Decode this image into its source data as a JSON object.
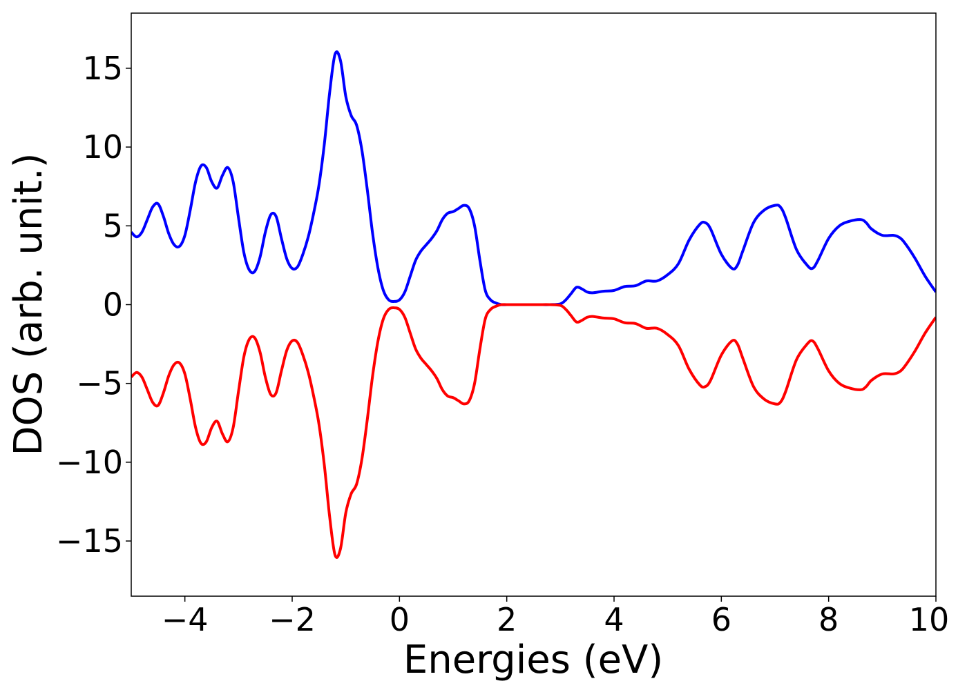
{
  "chart_data": {
    "type": "line",
    "xlabel": "Energies (eV)",
    "ylabel": "DOS (arb. unit.)",
    "xlim": [
      -5,
      10
    ],
    "ylim": [
      -18.5,
      18.5
    ],
    "grid": false,
    "legend": "none",
    "xticks": [
      -4,
      -2,
      0,
      2,
      4,
      6,
      8,
      10
    ],
    "xtick_labels": [
      "−4",
      "−2",
      "0",
      "2",
      "4",
      "6",
      "8",
      "10"
    ],
    "yticks": [
      -15,
      -10,
      -5,
      0,
      5,
      10,
      15
    ],
    "ytick_labels": [
      "−15",
      "−10",
      "−5",
      "0",
      "5",
      "10",
      "15"
    ],
    "series": [
      {
        "color": "#0000ff",
        "x": [
          -5.0,
          -4.9,
          -4.8,
          -4.7,
          -4.6,
          -4.5,
          -4.4,
          -4.3,
          -4.2,
          -4.1,
          -4.0,
          -3.9,
          -3.8,
          -3.7,
          -3.6,
          -3.5,
          -3.4,
          -3.3,
          -3.2,
          -3.1,
          -3.0,
          -2.9,
          -2.8,
          -2.7,
          -2.6,
          -2.5,
          -2.4,
          -2.3,
          -2.2,
          -2.1,
          -2.0,
          -1.9,
          -1.8,
          -1.7,
          -1.6,
          -1.5,
          -1.4,
          -1.3,
          -1.2,
          -1.1,
          -1.0,
          -0.9,
          -0.8,
          -0.7,
          -0.6,
          -0.5,
          -0.4,
          -0.3,
          -0.2,
          -0.1,
          0.0,
          0.1,
          0.2,
          0.3,
          0.4,
          0.5,
          0.6,
          0.7,
          0.8,
          0.9,
          1.0,
          1.1,
          1.2,
          1.3,
          1.4,
          1.5,
          1.6,
          1.7,
          1.8,
          1.9,
          2.0,
          2.1,
          2.2,
          2.4,
          2.6,
          2.8,
          3.0,
          3.1,
          3.2,
          3.3,
          3.4,
          3.5,
          3.6,
          3.8,
          4.0,
          4.2,
          4.4,
          4.6,
          4.8,
          5.0,
          5.2,
          5.4,
          5.6,
          5.7,
          5.8,
          6.0,
          6.2,
          6.3,
          6.4,
          6.6,
          6.8,
          7.0,
          7.1,
          7.2,
          7.4,
          7.6,
          7.7,
          7.8,
          8.0,
          8.2,
          8.4,
          8.6,
          8.7,
          8.8,
          9.0,
          9.2,
          9.3,
          9.4,
          9.6,
          9.8,
          10.0
        ],
        "y": [
          4.6,
          4.3,
          4.6,
          5.4,
          6.2,
          6.4,
          5.6,
          4.5,
          3.8,
          3.7,
          4.4,
          6.0,
          7.8,
          8.8,
          8.7,
          7.8,
          7.4,
          8.2,
          8.7,
          7.8,
          5.5,
          3.3,
          2.2,
          2.1,
          3.0,
          4.6,
          5.7,
          5.6,
          4.2,
          2.9,
          2.3,
          2.4,
          3.2,
          4.3,
          5.8,
          7.6,
          10.2,
          13.5,
          15.9,
          15.5,
          13.2,
          12.0,
          11.4,
          9.8,
          7.3,
          4.5,
          2.3,
          0.9,
          0.3,
          0.2,
          0.3,
          0.8,
          1.8,
          2.8,
          3.4,
          3.8,
          4.2,
          4.7,
          5.4,
          5.8,
          5.9,
          6.1,
          6.3,
          6.1,
          5.0,
          2.8,
          0.9,
          0.3,
          0.1,
          0.0,
          0.0,
          0.0,
          0.0,
          0.0,
          0.0,
          0.0,
          0.05,
          0.3,
          0.7,
          1.1,
          1.0,
          0.8,
          0.75,
          0.85,
          0.9,
          1.15,
          1.2,
          1.5,
          1.5,
          1.9,
          2.6,
          4.1,
          5.1,
          5.2,
          4.8,
          3.2,
          2.3,
          2.5,
          3.4,
          5.2,
          6.0,
          6.3,
          6.2,
          5.5,
          3.5,
          2.5,
          2.3,
          2.8,
          4.2,
          5.0,
          5.3,
          5.4,
          5.2,
          4.8,
          4.4,
          4.4,
          4.3,
          4.0,
          3.0,
          1.8,
          0.8
        ]
      },
      {
        "color": "#ff0000",
        "x": [
          -5.0,
          -4.9,
          -4.8,
          -4.7,
          -4.6,
          -4.5,
          -4.4,
          -4.3,
          -4.2,
          -4.1,
          -4.0,
          -3.9,
          -3.8,
          -3.7,
          -3.6,
          -3.5,
          -3.4,
          -3.3,
          -3.2,
          -3.1,
          -3.0,
          -2.9,
          -2.8,
          -2.7,
          -2.6,
          -2.5,
          -2.4,
          -2.3,
          -2.2,
          -2.1,
          -2.0,
          -1.9,
          -1.8,
          -1.7,
          -1.6,
          -1.5,
          -1.4,
          -1.3,
          -1.2,
          -1.1,
          -1.0,
          -0.9,
          -0.8,
          -0.7,
          -0.6,
          -0.5,
          -0.4,
          -0.3,
          -0.2,
          -0.1,
          0.0,
          0.1,
          0.2,
          0.3,
          0.4,
          0.5,
          0.6,
          0.7,
          0.8,
          0.9,
          1.0,
          1.1,
          1.2,
          1.3,
          1.4,
          1.5,
          1.6,
          1.7,
          1.8,
          1.9,
          2.0,
          2.1,
          2.2,
          2.4,
          2.6,
          2.8,
          3.0,
          3.1,
          3.2,
          3.3,
          3.4,
          3.5,
          3.6,
          3.8,
          4.0,
          4.2,
          4.4,
          4.6,
          4.8,
          5.0,
          5.2,
          5.4,
          5.6,
          5.7,
          5.8,
          6.0,
          6.2,
          6.3,
          6.4,
          6.6,
          6.8,
          7.0,
          7.1,
          7.2,
          7.4,
          7.6,
          7.7,
          7.8,
          8.0,
          8.2,
          8.4,
          8.6,
          8.7,
          8.8,
          9.0,
          9.2,
          9.3,
          9.4,
          9.6,
          9.8,
          10.0
        ],
        "y": [
          -4.6,
          -4.3,
          -4.6,
          -5.4,
          -6.2,
          -6.4,
          -5.6,
          -4.5,
          -3.8,
          -3.7,
          -4.4,
          -6.0,
          -7.8,
          -8.8,
          -8.7,
          -7.8,
          -7.4,
          -8.2,
          -8.7,
          -7.8,
          -5.5,
          -3.3,
          -2.2,
          -2.1,
          -3.0,
          -4.6,
          -5.7,
          -5.6,
          -4.2,
          -2.9,
          -2.3,
          -2.4,
          -3.2,
          -4.3,
          -5.8,
          -7.6,
          -10.2,
          -13.5,
          -15.9,
          -15.5,
          -13.2,
          -12.0,
          -11.4,
          -9.8,
          -7.3,
          -4.5,
          -2.3,
          -0.9,
          -0.3,
          -0.2,
          -0.3,
          -0.8,
          -1.8,
          -2.8,
          -3.4,
          -3.8,
          -4.2,
          -4.7,
          -5.4,
          -5.8,
          -5.9,
          -6.1,
          -6.3,
          -6.1,
          -5.0,
          -2.8,
          -0.9,
          -0.3,
          -0.1,
          0.0,
          0.0,
          0.0,
          0.0,
          0.0,
          0.0,
          0.0,
          -0.05,
          -0.3,
          -0.7,
          -1.1,
          -1.0,
          -0.8,
          -0.75,
          -0.85,
          -0.9,
          -1.15,
          -1.2,
          -1.5,
          -1.5,
          -1.9,
          -2.6,
          -4.1,
          -5.1,
          -5.2,
          -4.8,
          -3.2,
          -2.3,
          -2.5,
          -3.4,
          -5.2,
          -6.0,
          -6.3,
          -6.2,
          -5.5,
          -3.5,
          -2.5,
          -2.3,
          -2.8,
          -4.2,
          -5.0,
          -5.3,
          -5.4,
          -5.2,
          -4.8,
          -4.4,
          -4.4,
          -4.3,
          -4.0,
          -3.0,
          -1.8,
          -0.8
        ]
      }
    ]
  }
}
